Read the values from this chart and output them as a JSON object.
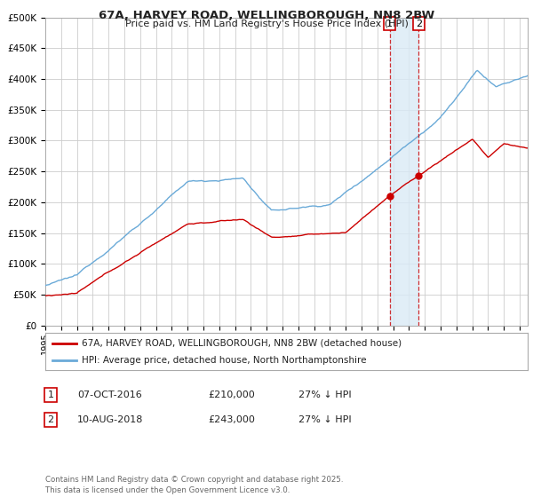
{
  "title": "67A, HARVEY ROAD, WELLINGBOROUGH, NN8 2BW",
  "subtitle": "Price paid vs. HM Land Registry's House Price Index (HPI)",
  "ylim": [
    0,
    500000
  ],
  "yticks": [
    0,
    50000,
    100000,
    150000,
    200000,
    250000,
    300000,
    350000,
    400000,
    450000,
    500000
  ],
  "ytick_labels": [
    "£0",
    "£50K",
    "£100K",
    "£150K",
    "£200K",
    "£250K",
    "£300K",
    "£350K",
    "£400K",
    "£450K",
    "£500K"
  ],
  "xlim_start": 1995,
  "xlim_end": 2025.5,
  "hpi_color": "#6aaad8",
  "price_color": "#cc0000",
  "bg_color": "#ffffff",
  "grid_color": "#cccccc",
  "span_color": "#daeaf6",
  "transaction1_date": 2016.77,
  "transaction1_price": 210000,
  "transaction2_date": 2018.61,
  "transaction2_price": 243000,
  "legend_label_price": "67A, HARVEY ROAD, WELLINGBOROUGH, NN8 2BW (detached house)",
  "legend_label_hpi": "HPI: Average price, detached house, North Northamptonshire",
  "table_row1": [
    "1",
    "07-OCT-2016",
    "£210,000",
    "27% ↓ HPI"
  ],
  "table_row2": [
    "2",
    "10-AUG-2018",
    "£243,000",
    "27% ↓ HPI"
  ],
  "footer": "Contains HM Land Registry data © Crown copyright and database right 2025.\nThis data is licensed under the Open Government Licence v3.0."
}
